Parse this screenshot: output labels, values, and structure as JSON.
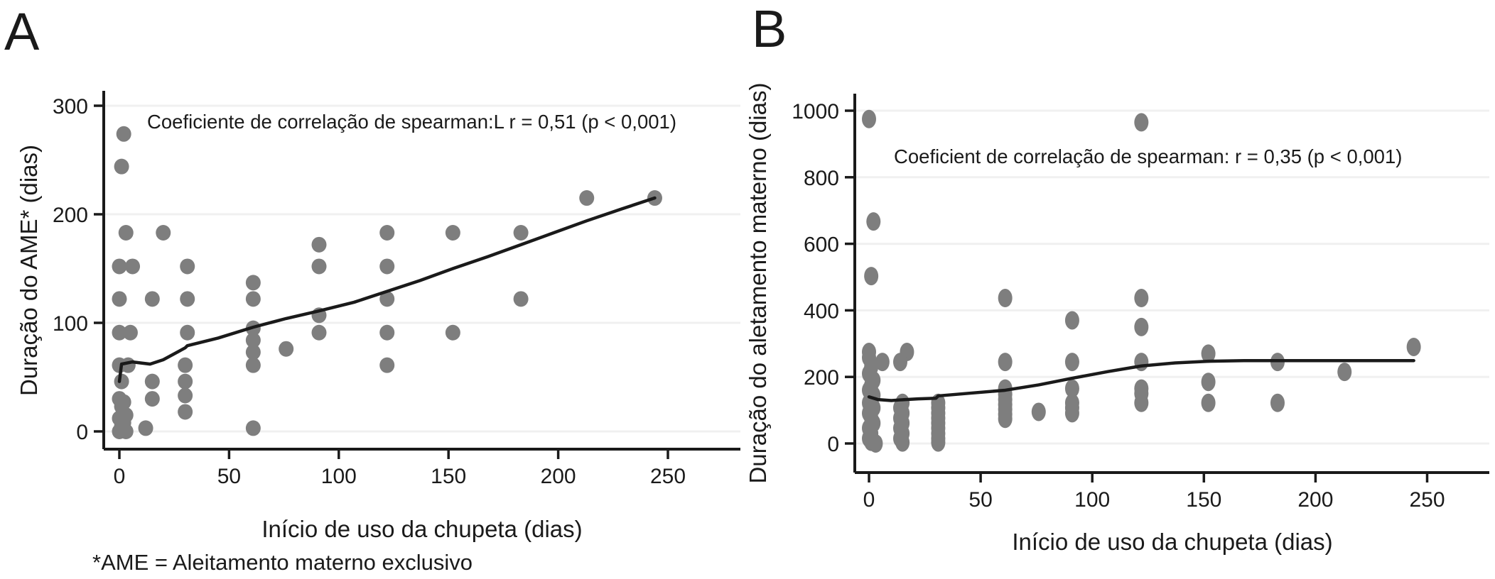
{
  "figure": {
    "background": "#ffffff",
    "colors": {
      "dot": "#7e7e7e",
      "trend": "#1a1a1a",
      "grid": "#f0f0f0",
      "axis": "#1a1a1a",
      "text": "#1a1a1a"
    }
  },
  "chart_data": [
    {
      "type": "scatter",
      "panel_label": "A",
      "annotation": "Coeficiente de correlação de spearman:L r = 0,51 (p < 0,001)",
      "xlabel": "Início de uso da chupeta (dias)",
      "ylabel": "Duração do AME* (dias)",
      "footnote": "*AME = Aleitamento materno exclusivo",
      "x_ticks": [
        0,
        50,
        100,
        150,
        200,
        250
      ],
      "y_ticks": [
        0,
        100,
        200,
        300
      ],
      "xlim": [
        0,
        250
      ],
      "ylim": [
        0,
        300
      ],
      "grid": "horizontal",
      "legend": "none",
      "spearman_r": "0,51",
      "p_value": "< 0,001",
      "points": [
        [
          2,
          274
        ],
        [
          1,
          244
        ],
        [
          3,
          183
        ],
        [
          20,
          183
        ],
        [
          122,
          183
        ],
        [
          152,
          183
        ],
        [
          183,
          183
        ],
        [
          213,
          215
        ],
        [
          244,
          215
        ],
        [
          91,
          172
        ],
        [
          0,
          152
        ],
        [
          6,
          152
        ],
        [
          31,
          152
        ],
        [
          91,
          152
        ],
        [
          122,
          152
        ],
        [
          61,
          137
        ],
        [
          0,
          122
        ],
        [
          15,
          122
        ],
        [
          31,
          122
        ],
        [
          61,
          122
        ],
        [
          122,
          122
        ],
        [
          183,
          122
        ],
        [
          91,
          107
        ],
        [
          0,
          91
        ],
        [
          5,
          91
        ],
        [
          31,
          91
        ],
        [
          91,
          91
        ],
        [
          122,
          91
        ],
        [
          152,
          91
        ],
        [
          61,
          95
        ],
        [
          61,
          84
        ],
        [
          61,
          73
        ],
        [
          76,
          76
        ],
        [
          0,
          61
        ],
        [
          4,
          61
        ],
        [
          30,
          61
        ],
        [
          61,
          61
        ],
        [
          122,
          61
        ],
        [
          1,
          46
        ],
        [
          15,
          46
        ],
        [
          30,
          46
        ],
        [
          0,
          30
        ],
        [
          15,
          30
        ],
        [
          30,
          33
        ],
        [
          2,
          27
        ],
        [
          1,
          23
        ],
        [
          30,
          18
        ],
        [
          3,
          15
        ],
        [
          0,
          12
        ],
        [
          2,
          8
        ],
        [
          1,
          5
        ],
        [
          12,
          3
        ],
        [
          61,
          3
        ],
        [
          0,
          0
        ],
        [
          3,
          0
        ]
      ],
      "trend": [
        [
          0,
          46
        ],
        [
          1,
          62
        ],
        [
          6,
          64
        ],
        [
          10,
          63
        ],
        [
          14,
          62
        ],
        [
          20,
          66
        ],
        [
          30,
          77
        ],
        [
          31,
          79
        ],
        [
          45,
          86
        ],
        [
          61,
          96
        ],
        [
          76,
          104
        ],
        [
          91,
          111
        ],
        [
          107,
          119
        ],
        [
          122,
          129
        ],
        [
          137,
          139
        ],
        [
          152,
          150
        ],
        [
          168,
          161
        ],
        [
          183,
          172
        ],
        [
          198,
          183
        ],
        [
          213,
          194
        ],
        [
          229,
          205
        ],
        [
          244,
          215
        ]
      ]
    },
    {
      "type": "scatter",
      "panel_label": "B",
      "annotation": "Coeficient de correlação de spearman: r = 0,35 (p < 0,001)",
      "xlabel": "Início de uso da chupeta (dias)",
      "ylabel": "Duração do aletamento materno (dias)",
      "footnote": "",
      "x_ticks": [
        0,
        50,
        100,
        150,
        200,
        250
      ],
      "y_ticks": [
        0,
        200,
        400,
        600,
        800,
        1000
      ],
      "xlim": [
        0,
        250
      ],
      "ylim": [
        0,
        1000
      ],
      "grid": "horizontal",
      "legend": "none",
      "spearman_r": "0,35",
      "p_value": "< 0,001",
      "points": [
        [
          0,
          975
        ],
        [
          122,
          965
        ],
        [
          2,
          667
        ],
        [
          1,
          503
        ],
        [
          61,
          437
        ],
        [
          122,
          437
        ],
        [
          91,
          370
        ],
        [
          122,
          350
        ],
        [
          244,
          290
        ],
        [
          0,
          275
        ],
        [
          17,
          275
        ],
        [
          152,
          270
        ],
        [
          0,
          258
        ],
        [
          6,
          245
        ],
        [
          14,
          245
        ],
        [
          61,
          245
        ],
        [
          91,
          245
        ],
        [
          122,
          245
        ],
        [
          183,
          245
        ],
        [
          1,
          230
        ],
        [
          213,
          215
        ],
        [
          0,
          210
        ],
        [
          2,
          190
        ],
        [
          152,
          185
        ],
        [
          1,
          175
        ],
        [
          61,
          165
        ],
        [
          91,
          165
        ],
        [
          122,
          165
        ],
        [
          0,
          160
        ],
        [
          61,
          148
        ],
        [
          122,
          150
        ],
        [
          2,
          145
        ],
        [
          61,
          132
        ],
        [
          1,
          130
        ],
        [
          0,
          122
        ],
        [
          15,
          122
        ],
        [
          31,
          122
        ],
        [
          91,
          122
        ],
        [
          122,
          122
        ],
        [
          152,
          122
        ],
        [
          183,
          122
        ],
        [
          61,
          117
        ],
        [
          2,
          107
        ],
        [
          14,
          107
        ],
        [
          31,
          107
        ],
        [
          91,
          107
        ],
        [
          61,
          103
        ],
        [
          76,
          95
        ],
        [
          0,
          91
        ],
        [
          15,
          91
        ],
        [
          31,
          91
        ],
        [
          91,
          91
        ],
        [
          61,
          88
        ],
        [
          1,
          76
        ],
        [
          14,
          76
        ],
        [
          31,
          76
        ],
        [
          61,
          74
        ],
        [
          2,
          61
        ],
        [
          15,
          61
        ],
        [
          31,
          61
        ],
        [
          0,
          46
        ],
        [
          14,
          46
        ],
        [
          31,
          46
        ],
        [
          1,
          30
        ],
        [
          15,
          30
        ],
        [
          31,
          30
        ],
        [
          0,
          15
        ],
        [
          14,
          15
        ],
        [
          31,
          15
        ],
        [
          1,
          5
        ],
        [
          15,
          3
        ],
        [
          31,
          3
        ],
        [
          3,
          0
        ]
      ],
      "trend": [
        [
          0,
          140
        ],
        [
          4,
          132
        ],
        [
          10,
          129
        ],
        [
          14,
          131
        ],
        [
          22,
          134
        ],
        [
          30,
          136
        ],
        [
          31,
          143
        ],
        [
          45,
          151
        ],
        [
          61,
          160
        ],
        [
          76,
          176
        ],
        [
          91,
          196
        ],
        [
          107,
          216
        ],
        [
          122,
          233
        ],
        [
          137,
          242
        ],
        [
          152,
          247
        ],
        [
          168,
          249
        ],
        [
          183,
          249
        ],
        [
          200,
          249
        ],
        [
          213,
          249
        ],
        [
          229,
          249
        ],
        [
          244,
          249
        ]
      ]
    }
  ]
}
